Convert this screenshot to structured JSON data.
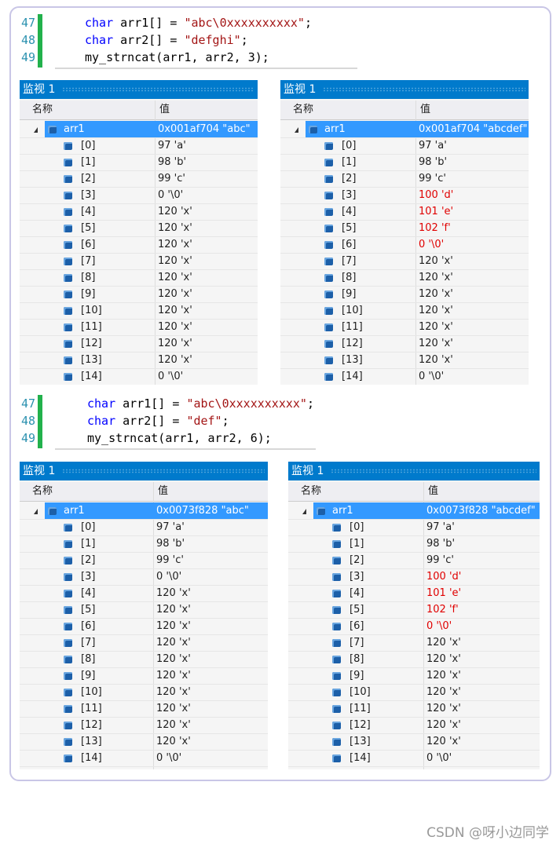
{
  "sections": [
    {
      "code": [
        {
          "num": "47",
          "tokens": [
            {
              "text": "char",
              "kind": "keyword"
            },
            {
              "text": " arr1[] = ",
              "kind": "plain"
            },
            {
              "text": "\"abc\\0xxxxxxxxxx\"",
              "kind": "string"
            },
            {
              "text": ";",
              "kind": "plain"
            }
          ]
        },
        {
          "num": "48",
          "tokens": [
            {
              "text": "char",
              "kind": "keyword"
            },
            {
              "text": " arr2[] = ",
              "kind": "plain"
            },
            {
              "text": "\"defghi\"",
              "kind": "string"
            },
            {
              "text": ";",
              "kind": "plain"
            }
          ]
        },
        {
          "num": "49",
          "tokens": [
            {
              "text": "my_strncat(arr1, arr2, 3);",
              "kind": "plain"
            }
          ]
        }
      ],
      "watches": [
        {
          "title": "监视 1",
          "headers": [
            "名称",
            "值"
          ],
          "root": {
            "name": "arr1",
            "value": "0x001af704 \"abc\""
          },
          "rows": [
            {
              "name": "[0]",
              "value": "97 'a'",
              "changed": false
            },
            {
              "name": "[1]",
              "value": "98 'b'",
              "changed": false
            },
            {
              "name": "[2]",
              "value": "99 'c'",
              "changed": false
            },
            {
              "name": "[3]",
              "value": "0 '\\0'",
              "changed": false
            },
            {
              "name": "[4]",
              "value": "120 'x'",
              "changed": false
            },
            {
              "name": "[5]",
              "value": "120 'x'",
              "changed": false
            },
            {
              "name": "[6]",
              "value": "120 'x'",
              "changed": false
            },
            {
              "name": "[7]",
              "value": "120 'x'",
              "changed": false
            },
            {
              "name": "[8]",
              "value": "120 'x'",
              "changed": false
            },
            {
              "name": "[9]",
              "value": "120 'x'",
              "changed": false
            },
            {
              "name": "[10]",
              "value": "120 'x'",
              "changed": false
            },
            {
              "name": "[11]",
              "value": "120 'x'",
              "changed": false
            },
            {
              "name": "[12]",
              "value": "120 'x'",
              "changed": false
            },
            {
              "name": "[13]",
              "value": "120 'x'",
              "changed": false
            },
            {
              "name": "[14]",
              "value": "0 '\\0'",
              "changed": false
            }
          ]
        },
        {
          "title": "监视 1",
          "headers": [
            "名称",
            "值"
          ],
          "root": {
            "name": "arr1",
            "value": "0x001af704 \"abcdef\""
          },
          "rows": [
            {
              "name": "[0]",
              "value": "97 'a'",
              "changed": false
            },
            {
              "name": "[1]",
              "value": "98 'b'",
              "changed": false
            },
            {
              "name": "[2]",
              "value": "99 'c'",
              "changed": false
            },
            {
              "name": "[3]",
              "value": "100 'd'",
              "changed": true
            },
            {
              "name": "[4]",
              "value": "101 'e'",
              "changed": true
            },
            {
              "name": "[5]",
              "value": "102 'f'",
              "changed": true
            },
            {
              "name": "[6]",
              "value": "0 '\\0'",
              "changed": true
            },
            {
              "name": "[7]",
              "value": "120 'x'",
              "changed": false
            },
            {
              "name": "[8]",
              "value": "120 'x'",
              "changed": false
            },
            {
              "name": "[9]",
              "value": "120 'x'",
              "changed": false
            },
            {
              "name": "[10]",
              "value": "120 'x'",
              "changed": false
            },
            {
              "name": "[11]",
              "value": "120 'x'",
              "changed": false
            },
            {
              "name": "[12]",
              "value": "120 'x'",
              "changed": false
            },
            {
              "name": "[13]",
              "value": "120 'x'",
              "changed": false
            },
            {
              "name": "[14]",
              "value": "0 '\\0'",
              "changed": false
            }
          ]
        }
      ]
    },
    {
      "code": [
        {
          "num": "47",
          "tokens": [
            {
              "text": "char",
              "kind": "keyword"
            },
            {
              "text": " arr1[] = ",
              "kind": "plain"
            },
            {
              "text": "\"abc\\0xxxxxxxxxx\"",
              "kind": "string"
            },
            {
              "text": ";",
              "kind": "plain"
            }
          ]
        },
        {
          "num": "48",
          "tokens": [
            {
              "text": "char",
              "kind": "keyword"
            },
            {
              "text": " arr2[] = ",
              "kind": "plain"
            },
            {
              "text": "\"def\"",
              "kind": "string"
            },
            {
              "text": ";",
              "kind": "plain"
            }
          ]
        },
        {
          "num": "49",
          "tokens": [
            {
              "text": "my_strncat(arr1, arr2, 6);",
              "kind": "plain"
            }
          ]
        }
      ],
      "watches": [
        {
          "title": "监视 1",
          "headers": [
            "名称",
            "值"
          ],
          "root": {
            "name": "arr1",
            "value": "0x0073f828 \"abc\""
          },
          "rows": [
            {
              "name": "[0]",
              "value": "97 'a'",
              "changed": false
            },
            {
              "name": "[1]",
              "value": "98 'b'",
              "changed": false
            },
            {
              "name": "[2]",
              "value": "99 'c'",
              "changed": false
            },
            {
              "name": "[3]",
              "value": "0 '\\0'",
              "changed": false
            },
            {
              "name": "[4]",
              "value": "120 'x'",
              "changed": false
            },
            {
              "name": "[5]",
              "value": "120 'x'",
              "changed": false
            },
            {
              "name": "[6]",
              "value": "120 'x'",
              "changed": false
            },
            {
              "name": "[7]",
              "value": "120 'x'",
              "changed": false
            },
            {
              "name": "[8]",
              "value": "120 'x'",
              "changed": false
            },
            {
              "name": "[9]",
              "value": "120 'x'",
              "changed": false
            },
            {
              "name": "[10]",
              "value": "120 'x'",
              "changed": false
            },
            {
              "name": "[11]",
              "value": "120 'x'",
              "changed": false
            },
            {
              "name": "[12]",
              "value": "120 'x'",
              "changed": false
            },
            {
              "name": "[13]",
              "value": "120 'x'",
              "changed": false
            },
            {
              "name": "[14]",
              "value": "0 '\\0'",
              "changed": false
            }
          ]
        },
        {
          "title": "监视 1",
          "headers": [
            "名称",
            "值"
          ],
          "root": {
            "name": "arr1",
            "value": "0x0073f828 \"abcdef\""
          },
          "rows": [
            {
              "name": "[0]",
              "value": "97 'a'",
              "changed": false
            },
            {
              "name": "[1]",
              "value": "98 'b'",
              "changed": false
            },
            {
              "name": "[2]",
              "value": "99 'c'",
              "changed": false
            },
            {
              "name": "[3]",
              "value": "100 'd'",
              "changed": true
            },
            {
              "name": "[4]",
              "value": "101 'e'",
              "changed": true
            },
            {
              "name": "[5]",
              "value": "102 'f'",
              "changed": true
            },
            {
              "name": "[6]",
              "value": "0 '\\0'",
              "changed": true
            },
            {
              "name": "[7]",
              "value": "120 'x'",
              "changed": false
            },
            {
              "name": "[8]",
              "value": "120 'x'",
              "changed": false
            },
            {
              "name": "[9]",
              "value": "120 'x'",
              "changed": false
            },
            {
              "name": "[10]",
              "value": "120 'x'",
              "changed": false
            },
            {
              "name": "[11]",
              "value": "120 'x'",
              "changed": false
            },
            {
              "name": "[12]",
              "value": "120 'x'",
              "changed": false
            },
            {
              "name": "[13]",
              "value": "120 'x'",
              "changed": false
            },
            {
              "name": "[14]",
              "value": "0 '\\0'",
              "changed": false
            }
          ]
        }
      ]
    }
  ],
  "watermark": "CSDN @呀小边同学"
}
